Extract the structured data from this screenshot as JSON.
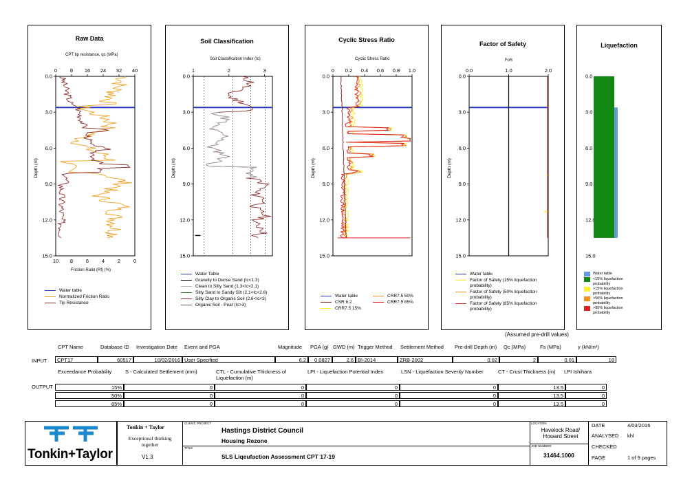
{
  "panels": {
    "raw": {
      "title": "Raw Data",
      "top_axis_label": "CPT tip resistance, qc (MPa)",
      "top_ticks": [
        "0",
        "8",
        "16",
        "24",
        "32",
        "40"
      ],
      "bottom_axis_label": "Friction Ratio (Rf) (%)",
      "bottom_ticks": [
        "10",
        "8",
        "6",
        "4",
        "2",
        "0"
      ],
      "legend": [
        "Water table",
        "Normalized Friction Ratio",
        "Tip Resistance"
      ]
    },
    "soil": {
      "title": "Soil Classification",
      "top_axis_label": "Soil Classification Index (Ic)",
      "top_ticks": [
        "1",
        "2",
        "3"
      ],
      "legend": [
        "Water Table",
        "Gravelly to Dense Sand (Ic<1.3)",
        "Clean to Silty Sand (1.3<Ic<2.1)",
        "Silty Sand to Sandy Silt (2.1<Ic<2.6)",
        "Silty Clay to Organic Soil (2.6<Ic<3)",
        "Organic Soil - Peat (Ic>3)"
      ]
    },
    "csr": {
      "title": "Cyclic Stress Ratio",
      "top_axis_label": "Cyclic Stress Ratio",
      "top_ticks": [
        "0",
        "0.2",
        "0.4",
        "0.6",
        "0.8",
        "1.0"
      ],
      "legend": [
        "Water table",
        "CSR 6.2",
        "CRR7.5 15%",
        "CRR7.5 50%",
        "CRR7.5 85%"
      ]
    },
    "fos": {
      "title": "Factor of Safety",
      "top_axis_label": "FoS",
      "top_ticks": [
        "0.0",
        "1.0",
        "2.0"
      ],
      "legend": [
        "Water table",
        "Factor of Safety (15% liquefaction probability)",
        "Factor of Safety (50% liquefaction probability)",
        "Factor of Safety (85% liquefaction probability)"
      ]
    },
    "liq": {
      "title": "Liquefaction",
      "legend": [
        "Water table",
        "<15% liquefaction probability",
        ">15% liquefaction probability",
        ">50% liquefaction probability",
        ">85% liquefaction probability"
      ]
    },
    "depth_label": "Depth (m)",
    "depth_ticks": [
      "0.0",
      "3.0",
      "6.0",
      "9.0",
      "12.0",
      "15.0"
    ]
  },
  "colors": {
    "water": "#2233bb",
    "tip": "#8b2a2a",
    "friction": "#f0a020",
    "green": "#1a7a1a",
    "grey": "#aaaaaa",
    "red": "#dd2222",
    "yellow": "#ffee33",
    "orange": "#f09020",
    "liq_green": "#118811",
    "liq_blue": "#6699dd"
  },
  "chart_data": {
    "type": "line",
    "depth_range": [
      0,
      15
    ],
    "water_table_depth": 2.6,
    "liquefaction_bar_depth": [
      0,
      13.5
    ]
  },
  "table": {
    "assumed_note": "(Assumed pre-drill values)",
    "input_headers": [
      "CPT Name",
      "Database ID",
      "Investigation Date",
      "Event and PGA",
      "Magnitude",
      "PGA (g)",
      "GWD (m)",
      "Trigger Method",
      "Settlement Method",
      "Pre-drill Depth (m)",
      "Qc (MPa)",
      "Fs (MPa)",
      "γ (kN/m³)"
    ],
    "input_label": "INPUT",
    "input_values": [
      "CPT17",
      "60517",
      "10/02/2016",
      "User Specified",
      "6.2",
      "0.0827",
      "2.6",
      "BI-2014",
      "ZRB-2002",
      "0.02",
      "2",
      "0.01",
      "18"
    ],
    "output_headers": [
      "Exceedance Probability",
      "S - Calculated Settlement (mm)",
      "CTL - Cumulative Thickness of Liquefaction (m)",
      "LPI - Liquefaction Potential Index",
      "LSN - Liquefaction Severity Number",
      "CT - Crust Thickness (m)",
      "LPI Ishihara"
    ],
    "output_label": "OUTPUT",
    "output_rows": [
      [
        "15%",
        "0",
        "0",
        "0",
        "0",
        "13.5",
        "0"
      ],
      [
        "50%",
        "0",
        "0",
        "0",
        "0",
        "13.5",
        "0"
      ],
      [
        "85%",
        "0",
        "0",
        "0",
        "0",
        "13.5",
        "0"
      ]
    ]
  },
  "titleblock": {
    "logo_text": "Tonkin+Taylor",
    "company": "Tonkin + Taylor",
    "tagline": "Exceptional thinking together",
    "version": "V1.3",
    "client_label": "CLIENT, PROJECT",
    "client": "Hastings District Council",
    "project": "Housing Rezone",
    "title_label": "TITLE",
    "title": "SLS Liqeufaction Assessment CPT 17-19",
    "location_label": "LOCATION",
    "location": "Havelock Road/ Howard Street",
    "job_label": "JOB NUMBER",
    "job": "31464.1000",
    "date_label": "DATE",
    "date": "4/03/2016",
    "analysed_label": "ANALYSED",
    "analysed": "khl",
    "checked_label": "CHECKED",
    "checked": "",
    "page_label": "PAGE",
    "page": "1 of 9 pages"
  }
}
